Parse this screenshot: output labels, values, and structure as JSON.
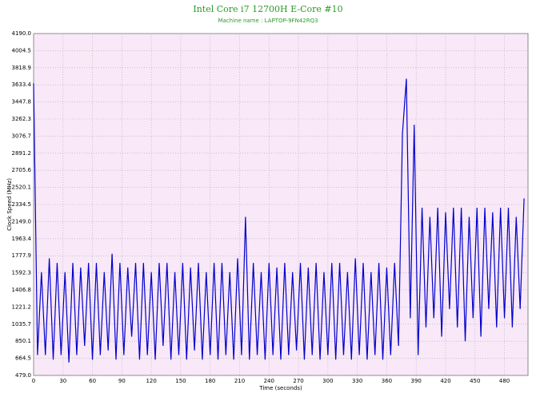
{
  "chart_data": {
    "type": "line",
    "title": "Intel Core i7 12700H E-Core #10",
    "subtitle": "Machine name : LAPTOP-9FN42RQ3",
    "x_label": "Time (seconds)",
    "y_label": "Clock Speed (MHz)",
    "x": [
      0,
      4,
      8,
      12,
      16,
      20,
      24,
      28,
      32,
      36,
      40,
      44,
      48,
      52,
      56,
      60,
      64,
      68,
      72,
      76,
      80,
      84,
      88,
      92,
      96,
      100,
      104,
      108,
      112,
      116,
      120,
      124,
      128,
      132,
      136,
      140,
      144,
      148,
      152,
      156,
      160,
      164,
      168,
      172,
      176,
      180,
      184,
      188,
      192,
      196,
      200,
      204,
      208,
      212,
      216,
      220,
      224,
      228,
      232,
      236,
      240,
      244,
      248,
      252,
      256,
      260,
      264,
      268,
      272,
      276,
      280,
      284,
      288,
      292,
      296,
      300,
      304,
      308,
      312,
      316,
      320,
      324,
      328,
      332,
      336,
      340,
      344,
      348,
      352,
      356,
      360,
      364,
      368,
      372,
      376,
      380,
      384,
      388,
      392,
      396,
      400,
      404,
      408,
      412,
      416,
      420,
      424,
      428,
      432,
      436,
      440,
      444,
      448,
      452,
      456,
      460,
      464,
      468,
      472,
      476,
      480,
      484,
      488,
      492,
      496,
      500
    ],
    "series": [
      {
        "name": "Clock Speed",
        "color": "#0000cc",
        "values": [
          3650,
          700,
          1600,
          700,
          1750,
          650,
          1700,
          700,
          1600,
          620,
          1700,
          700,
          1650,
          800,
          1700,
          650,
          1700,
          700,
          1600,
          750,
          1800,
          650,
          1700,
          700,
          1650,
          900,
          1700,
          650,
          1700,
          700,
          1600,
          650,
          1700,
          800,
          1700,
          650,
          1600,
          700,
          1700,
          650,
          1650,
          750,
          1700,
          650,
          1600,
          700,
          1700,
          650,
          1700,
          700,
          1600,
          650,
          1750,
          700,
          2200,
          650,
          1700,
          700,
          1600,
          650,
          1700,
          700,
          1650,
          650,
          1700,
          700,
          1600,
          750,
          1700,
          650,
          1650,
          700,
          1700,
          650,
          1600,
          700,
          1700,
          650,
          1700,
          700,
          1600,
          650,
          1750,
          700,
          1700,
          650,
          1600,
          700,
          1700,
          650,
          1650,
          700,
          1700,
          800,
          3100,
          3700,
          1100,
          3200,
          700,
          2300,
          1000,
          2200,
          1100,
          2300,
          900,
          2250,
          1200,
          2300,
          1000,
          2300,
          850,
          2200,
          1100,
          2300,
          900,
          2300,
          1200,
          2250,
          1000,
          2300,
          1100,
          2300,
          1000,
          2200,
          1200,
          2400
        ]
      }
    ],
    "xlim": [
      0,
      504
    ],
    "ylim": [
      479,
      4190
    ],
    "xticks": [
      0,
      30,
      60,
      90,
      120,
      150,
      180,
      210,
      240,
      270,
      300,
      330,
      360,
      390,
      420,
      450,
      480
    ],
    "yticks": [
      {
        "value": 479,
        "label": "479.0"
      },
      664.5,
      850.1,
      1035.7,
      1221.2,
      1406.8,
      1592.3,
      1777.9,
      1963.4,
      {
        "value": 2149,
        "label": "2149.0"
      },
      2334.5,
      2520.1,
      2705.6,
      2891.2,
      3076.7,
      3262.3,
      3447.8,
      3633.4,
      3818.9,
      4004.5,
      {
        "value": 4190,
        "label": "4190.0"
      }
    ],
    "grid": true
  }
}
